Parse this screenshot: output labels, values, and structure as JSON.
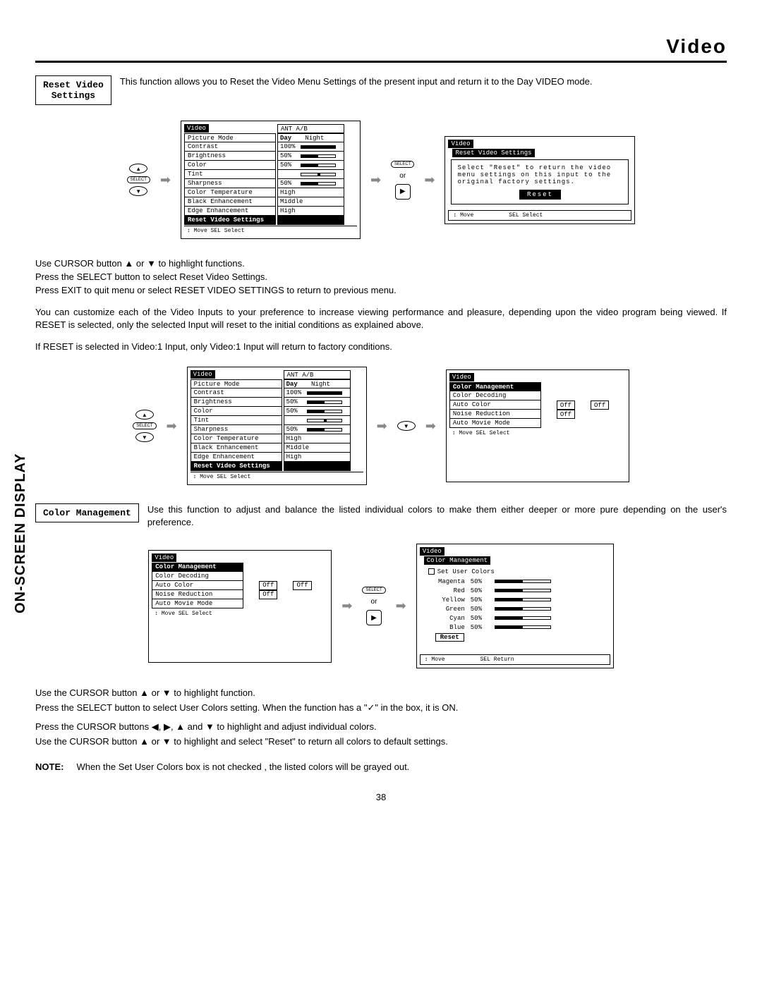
{
  "header_title": "Video",
  "sidebar_label": "ON-SCREEN DISPLAY",
  "page_number": "38",
  "reset_section": {
    "label": "Reset Video\nSettings",
    "desc": "This function allows you to Reset the Video Menu Settings of the present input and return it to the Day VIDEO mode."
  },
  "video_menu": {
    "title": "Video",
    "input_label": "ANT A/B",
    "mode_day": "Day",
    "mode_night": "Night",
    "rows": [
      {
        "label": "Picture Mode",
        "value": "",
        "type": "mode"
      },
      {
        "label": "Contrast",
        "value": "100%",
        "fill": 100
      },
      {
        "label": "Brightness",
        "value": "50%",
        "fill": 50
      },
      {
        "label": "Color",
        "value": "50%",
        "fill": 50
      },
      {
        "label": "Tint",
        "value": "",
        "fill": 50,
        "center": true
      },
      {
        "label": "Sharpness",
        "value": "50%",
        "fill": 50
      },
      {
        "label": "Color Temperature",
        "value": "High"
      },
      {
        "label": "Black Enhancement",
        "value": "Middle"
      },
      {
        "label": "Edge Enhancement",
        "value": "High"
      },
      {
        "label": "Reset Video Settings",
        "value": "",
        "hl": true
      }
    ],
    "footer": "Move   SEL Select"
  },
  "reset_dialog": {
    "title": "Video",
    "subtitle": "Reset Video Settings",
    "text_l1": "Select \"Reset\" to return the video",
    "text_l2": "menu settings on this input to the",
    "text_l3": "original factory settings.",
    "button": "Reset",
    "footer_move": "Move",
    "footer_select": "SEL  Select"
  },
  "instructions1": [
    "Use CURSOR button ▲ or ▼ to highlight functions.",
    "Press the SELECT button to select Reset Video Settings.",
    "Press EXIT to quit menu or select RESET VIDEO SETTINGS to return to previous menu."
  ],
  "para1": "You can customize each of the Video Inputs to your preference to increase viewing performance and pleasure, depending upon the video program being viewed. If RESET is selected, only the selected Input will reset to the initial conditions as explained above.",
  "para2": "If RESET is selected in Video:1 Input, only Video:1 Input will return to factory conditions.",
  "color_mgmt_menu": {
    "title": "Video",
    "subtitle": "Color Management",
    "rows": [
      {
        "label": "Color Decoding"
      },
      {
        "label": "Auto Color",
        "value": "Off"
      },
      {
        "label": "Noise Reduction",
        "value": "Off"
      },
      {
        "label": "Auto Movie Mode",
        "value": "Off"
      }
    ],
    "footer": "Move   SEL Select"
  },
  "color_section": {
    "label": "Color Management",
    "desc": "Use this function to adjust and balance the listed individual colors to make them either deeper or more pure depending on the user's preference."
  },
  "user_colors": {
    "title": "Video",
    "subtitle": "Color Management",
    "set_label": "Set User Colors",
    "colors": [
      {
        "name": "Magenta",
        "value": "50%",
        "fill": 50
      },
      {
        "name": "Red",
        "value": "50%",
        "fill": 50
      },
      {
        "name": "Yellow",
        "value": "50%",
        "fill": 50
      },
      {
        "name": "Green",
        "value": "50%",
        "fill": 50
      },
      {
        "name": "Cyan",
        "value": "50%",
        "fill": 50
      },
      {
        "name": "Blue",
        "value": "50%",
        "fill": 50
      }
    ],
    "reset": "Reset",
    "footer_move": "Move",
    "footer_return": "SEL  Return"
  },
  "instructions2": [
    "Use the CURSOR button ▲ or ▼ to highlight function.",
    "Press the SELECT button to select User Colors setting.  When the function has a \"✓\" in the box, it is ON.",
    "Press  the CURSOR buttons ◀, ▶, ▲ and ▼ to highlight and adjust individual colors.",
    "Use the CURSOR button ▲ or ▼ to highlight and select \"Reset\" to return all colors to default settings."
  ],
  "note": {
    "label": "NOTE:",
    "text": "When the Set User Colors box is not checked , the listed colors will be grayed out."
  },
  "or_label": "or",
  "select_btn": "SELECT"
}
